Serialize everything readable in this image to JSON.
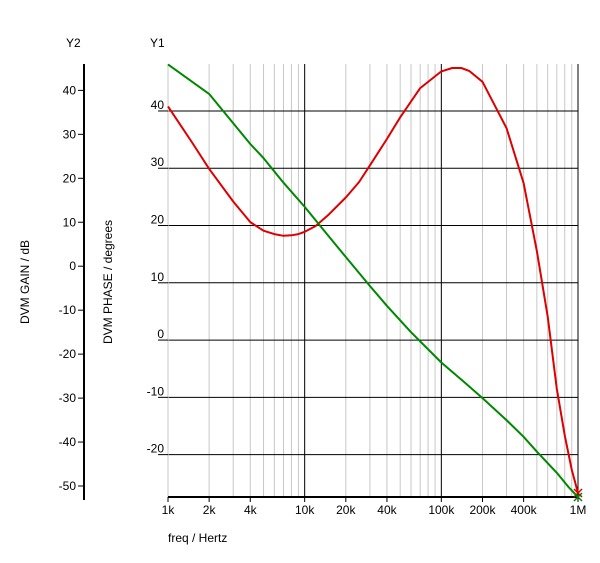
{
  "chart_data": {
    "type": "line",
    "xlabel": "freq / Hertz",
    "xscale": "log",
    "xlim": [
      1000,
      1000000
    ],
    "x_ticks": [
      {
        "v": 1000,
        "label": "1k"
      },
      {
        "v": 2000,
        "label": "2k"
      },
      {
        "v": 4000,
        "label": "4k"
      },
      {
        "v": 10000,
        "label": "10k"
      },
      {
        "v": 20000,
        "label": "20k"
      },
      {
        "v": 40000,
        "label": "40k"
      },
      {
        "v": 100000,
        "label": "100k"
      },
      {
        "v": 200000,
        "label": "200k"
      },
      {
        "v": 400000,
        "label": "400k"
      },
      {
        "v": 1000000,
        "label": "1M"
      }
    ],
    "y1": {
      "axis_title": "Y1",
      "label": "DVM PHASE / degrees",
      "ylim": [
        -27.4,
        48.2
      ],
      "ticks": [
        40,
        30,
        20,
        10,
        0,
        -10,
        -20
      ]
    },
    "y2": {
      "axis_title": "Y2",
      "label": "DVM GAIN / dB",
      "ylim": [
        -52.5,
        46.0
      ],
      "ticks": [
        40,
        30,
        20,
        10,
        0,
        -10,
        -20,
        -30,
        -40,
        -50
      ]
    },
    "grid": true,
    "series": [
      {
        "axis": "y1",
        "color": "#dd0000",
        "points": [
          [
            1000,
            40.8
          ],
          [
            1500,
            34.5
          ],
          [
            2000,
            29.9
          ],
          [
            3000,
            24.2
          ],
          [
            4000,
            20.6
          ],
          [
            5000,
            19.1
          ],
          [
            6000,
            18.5
          ],
          [
            7000,
            18.2
          ],
          [
            8000,
            18.3
          ],
          [
            9000,
            18.5
          ],
          [
            10000,
            18.9
          ],
          [
            12000,
            19.9
          ],
          [
            15000,
            21.9
          ],
          [
            20000,
            24.9
          ],
          [
            25000,
            27.6
          ],
          [
            30000,
            30.5
          ],
          [
            40000,
            35.1
          ],
          [
            50000,
            38.9
          ],
          [
            70000,
            44.0
          ],
          [
            100000,
            46.9
          ],
          [
            120000,
            47.5
          ],
          [
            140000,
            47.5
          ],
          [
            160000,
            47.0
          ],
          [
            200000,
            45.1
          ],
          [
            300000,
            37.0
          ],
          [
            400000,
            27.4
          ],
          [
            500000,
            15.5
          ],
          [
            600000,
            4.1
          ],
          [
            700000,
            -8.5
          ],
          [
            800000,
            -16.7
          ],
          [
            900000,
            -22.6
          ],
          [
            1000000,
            -26.7
          ]
        ]
      },
      {
        "axis": "y2",
        "color": "#008800",
        "points": [
          [
            1000,
            45.9
          ],
          [
            2000,
            39.2
          ],
          [
            4000,
            27.8
          ],
          [
            5000,
            24.6
          ],
          [
            7000,
            19.0
          ],
          [
            10000,
            13.5
          ],
          [
            15000,
            6.8
          ],
          [
            20000,
            2.1
          ],
          [
            30000,
            -4.5
          ],
          [
            40000,
            -9.0
          ],
          [
            60000,
            -15.0
          ],
          [
            100000,
            -21.9
          ],
          [
            150000,
            -26.6
          ],
          [
            200000,
            -30.0
          ],
          [
            300000,
            -35.0
          ],
          [
            400000,
            -38.8
          ],
          [
            500000,
            -42.2
          ],
          [
            700000,
            -47.0
          ],
          [
            850000,
            -50.2
          ],
          [
            1000000,
            -52.5
          ]
        ]
      }
    ]
  }
}
